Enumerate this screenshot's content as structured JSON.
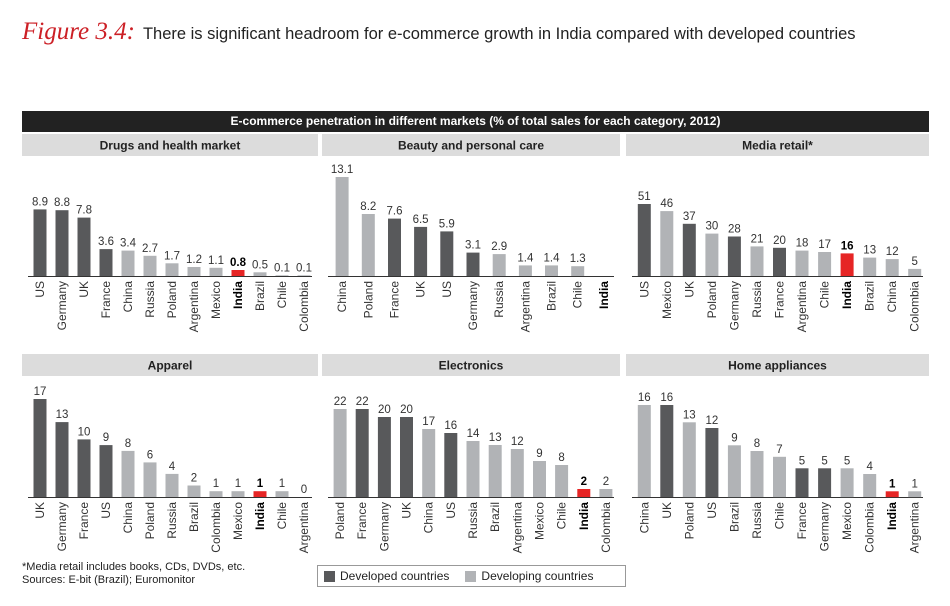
{
  "figure": {
    "label": "Figure 3.4:",
    "title": "There is significant headroom for e-commerce growth in India compared with developed countries"
  },
  "banner": "E-commerce penetration in different markets (% of total sales for each category, 2012)",
  "colors": {
    "developed": "#58595b",
    "developing": "#b1b3b6",
    "india": "#e62525",
    "panel_bg": "#dcdcdc",
    "banner_bg": "#222222"
  },
  "legend": [
    {
      "label": "Developed countries",
      "color": "#58595b"
    },
    {
      "label": "Developing countries",
      "color": "#b1b3b6"
    }
  ],
  "notes": [
    "*Media retail includes books, CDs, DVDs, etc.",
    "Sources: E-bit (Brazil); Euromonitor"
  ],
  "chart_data": [
    {
      "type": "bar",
      "title": "Drugs and health market",
      "ylim": [
        0,
        13.1
      ],
      "categories": [
        "US",
        "Germany",
        "UK",
        "France",
        "China",
        "Russia",
        "Poland",
        "Argentina",
        "Mexico",
        "India",
        "Brazil",
        "Chile",
        "Colombia"
      ],
      "values": [
        8.9,
        8.8,
        7.8,
        3.6,
        3.4,
        2.7,
        1.7,
        1.2,
        1.1,
        0.8,
        0.5,
        0.1,
        0.1
      ],
      "value_labels": [
        "8.9",
        "8.8",
        "7.8",
        "3.6",
        "3.4",
        "2.7",
        "1.7",
        "1.2",
        "1.1",
        "0.8",
        "0.5",
        "0.1",
        "0.1"
      ],
      "groups": [
        "developed",
        "developed",
        "developed",
        "developed",
        "developing",
        "developing",
        "developing",
        "developing",
        "developing",
        "india",
        "developing",
        "developing",
        "developing"
      ]
    },
    {
      "type": "bar",
      "title": "Beauty and personal care",
      "ylim": [
        0,
        13.1
      ],
      "categories": [
        "China",
        "Poland",
        "France",
        "UK",
        "US",
        "Germany",
        "Russia",
        "Argentina",
        "Brazil",
        "Chile",
        "India"
      ],
      "values": [
        13.1,
        8.2,
        7.6,
        6.5,
        5.9,
        3.1,
        2.9,
        1.4,
        1.4,
        1.3,
        0
      ],
      "value_labels": [
        "13.1",
        "8.2",
        "7.6",
        "6.5",
        "5.9",
        "3.1",
        "2.9",
        "1.4",
        "1.4",
        "1.3",
        ""
      ],
      "groups": [
        "developing",
        "developing",
        "developed",
        "developed",
        "developed",
        "developed",
        "developing",
        "developing",
        "developing",
        "developing",
        "india"
      ]
    },
    {
      "type": "bar",
      "title": "Media retail*",
      "ylim": [
        0,
        51
      ],
      "categories": [
        "US",
        "Mexico",
        "UK",
        "Poland",
        "Germany",
        "Russia",
        "France",
        "Argentina",
        "Chile",
        "India",
        "Brazil",
        "China",
        "Colombia"
      ],
      "values": [
        51,
        46,
        37,
        30,
        28,
        21,
        20,
        18,
        17,
        16,
        13,
        12,
        5
      ],
      "value_labels": [
        "51",
        "46",
        "37",
        "30",
        "28",
        "21",
        "20",
        "18",
        "17",
        "16",
        "13",
        "12",
        "5"
      ],
      "groups": [
        "developed",
        "developing",
        "developed",
        "developing",
        "developed",
        "developing",
        "developed",
        "developing",
        "developing",
        "india",
        "developing",
        "developing",
        "developing"
      ]
    },
    {
      "type": "bar",
      "title": "Apparel",
      "ylim": [
        0,
        17
      ],
      "categories": [
        "UK",
        "Germany",
        "France",
        "US",
        "China",
        "Poland",
        "Russia",
        "Brazil",
        "Colombia",
        "Mexico",
        "India",
        "Chile",
        "Argentina"
      ],
      "values": [
        17,
        13,
        10,
        9,
        8,
        6,
        4,
        2,
        1,
        1,
        1,
        1,
        0
      ],
      "value_labels": [
        "17",
        "13",
        "10",
        "9",
        "8",
        "6",
        "4",
        "2",
        "1",
        "1",
        "1",
        "1",
        "0"
      ],
      "groups": [
        "developed",
        "developed",
        "developed",
        "developed",
        "developing",
        "developing",
        "developing",
        "developing",
        "developing",
        "developing",
        "india",
        "developing",
        "developing"
      ]
    },
    {
      "type": "bar",
      "title": "Electronics",
      "ylim": [
        0,
        22
      ],
      "categories": [
        "Poland",
        "France",
        "Germany",
        "UK",
        "China",
        "US",
        "Russia",
        "Brazil",
        "Argentina",
        "Mexico",
        "Chile",
        "India",
        "Colombia"
      ],
      "values": [
        22,
        22,
        20,
        20,
        17,
        16,
        14,
        13,
        12,
        9,
        8,
        2,
        2
      ],
      "value_labels": [
        "22",
        "22",
        "20",
        "20",
        "17",
        "16",
        "14",
        "13",
        "12",
        "9",
        "8",
        "2",
        "2"
      ],
      "groups": [
        "developing",
        "developed",
        "developed",
        "developed",
        "developing",
        "developed",
        "developing",
        "developing",
        "developing",
        "developing",
        "developing",
        "india",
        "developing"
      ]
    },
    {
      "type": "bar",
      "title": "Home appliances",
      "ylim": [
        0,
        16
      ],
      "categories": [
        "China",
        "UK",
        "Poland",
        "US",
        "Brazil",
        "Russia",
        "Chile",
        "France",
        "Germany",
        "Mexico",
        "Colombia",
        "India",
        "Argentina"
      ],
      "values": [
        16,
        16,
        13,
        12,
        9,
        8,
        7,
        5,
        5,
        5,
        4,
        1,
        1
      ],
      "value_labels": [
        "16",
        "16",
        "13",
        "12",
        "9",
        "8",
        "7",
        "5",
        "5",
        "5",
        "4",
        "1",
        "1"
      ],
      "groups": [
        "developing",
        "developed",
        "developing",
        "developed",
        "developing",
        "developing",
        "developing",
        "developed",
        "developed",
        "developing",
        "developing",
        "india",
        "developing"
      ]
    }
  ]
}
